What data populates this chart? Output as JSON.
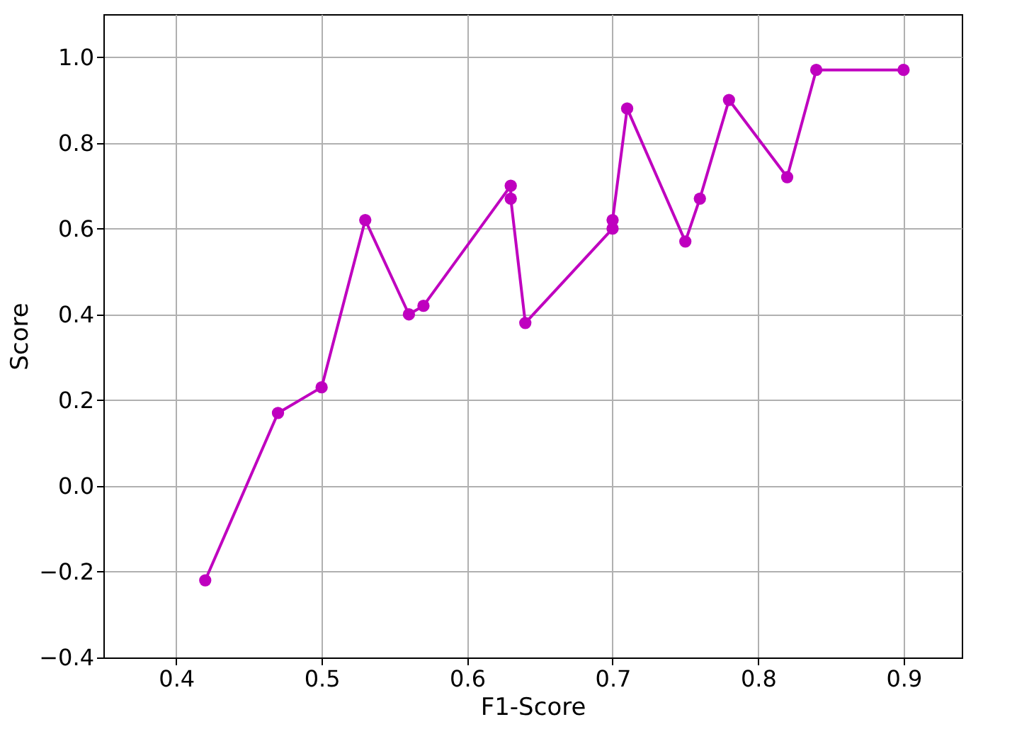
{
  "chart_data": {
    "type": "line",
    "xlabel": "F1-Score",
    "ylabel": "Score",
    "x": [
      0.42,
      0.47,
      0.5,
      0.53,
      0.56,
      0.57,
      0.63,
      0.63,
      0.64,
      0.7,
      0.7,
      0.71,
      0.75,
      0.76,
      0.78,
      0.82,
      0.84,
      0.9
    ],
    "series": [
      {
        "color": "#bf00bf",
        "values": [
          -0.22,
          0.17,
          0.23,
          0.62,
          0.4,
          0.42,
          0.7,
          0.67,
          0.38,
          0.6,
          0.62,
          0.88,
          0.57,
          0.67,
          0.9,
          0.72,
          0.97,
          0.97
        ]
      }
    ],
    "xlim": [
      0.35,
      0.94
    ],
    "xticks": [
      0.4,
      0.5,
      0.6,
      0.7,
      0.8,
      0.9
    ],
    "ylim": [
      -0.4,
      1.1
    ],
    "yticks": [
      -0.4,
      -0.2,
      {
        "value": 0,
        "label": "0.0"
      },
      0.2,
      0.4,
      0.6,
      0.8,
      {
        "value": 1,
        "label": "1.0"
      }
    ],
    "grid": true,
    "marker": "circle",
    "line_style": "solid"
  }
}
